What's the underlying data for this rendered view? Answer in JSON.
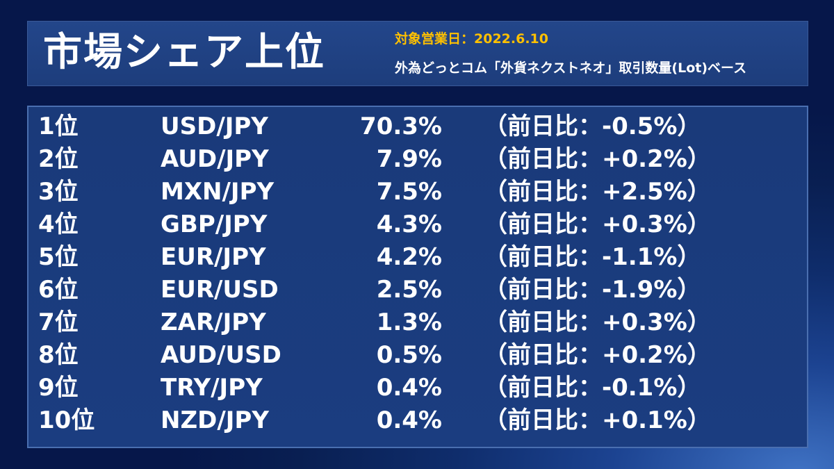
{
  "header": {
    "title": "市場シェア上位",
    "date_line": "対象営業日：2022.6.10",
    "basis_line": "外為どっとコム「外貨ネクストネオ」取引数量(Lot)ベース"
  },
  "rows": [
    {
      "rank": "1位",
      "pair": "USD/JPY",
      "share": "70.3%",
      "change": "（前日比：-0.5%）"
    },
    {
      "rank": "2位",
      "pair": "AUD/JPY",
      "share": "7.9%",
      "change": "（前日比：+0.2%）"
    },
    {
      "rank": "3位",
      "pair": "MXN/JPY",
      "share": "7.5%",
      "change": "（前日比：+2.5%）"
    },
    {
      "rank": "4位",
      "pair": "GBP/JPY",
      "share": "4.3%",
      "change": "（前日比：+0.3%）"
    },
    {
      "rank": "5位",
      "pair": "EUR/JPY",
      "share": "4.2%",
      "change": "（前日比：-1.1%）"
    },
    {
      "rank": "6位",
      "pair": "EUR/USD",
      "share": "2.5%",
      "change": "（前日比：-1.9%）"
    },
    {
      "rank": "7位",
      "pair": "ZAR/JPY",
      "share": "1.3%",
      "change": "（前日比：+0.3%）"
    },
    {
      "rank": "8位",
      "pair": "AUD/USD",
      "share": "0.5%",
      "change": "（前日比：+0.2%）"
    },
    {
      "rank": "9位",
      "pair": "TRY/JPY",
      "share": "0.4%",
      "change": "（前日比：-0.1%）"
    },
    {
      "rank": "10位",
      "pair": "NZD/JPY",
      "share": "0.4%",
      "change": "（前日比：+0.1%）"
    }
  ],
  "colors": {
    "accent": "#ffc000",
    "text": "#ffffff"
  }
}
